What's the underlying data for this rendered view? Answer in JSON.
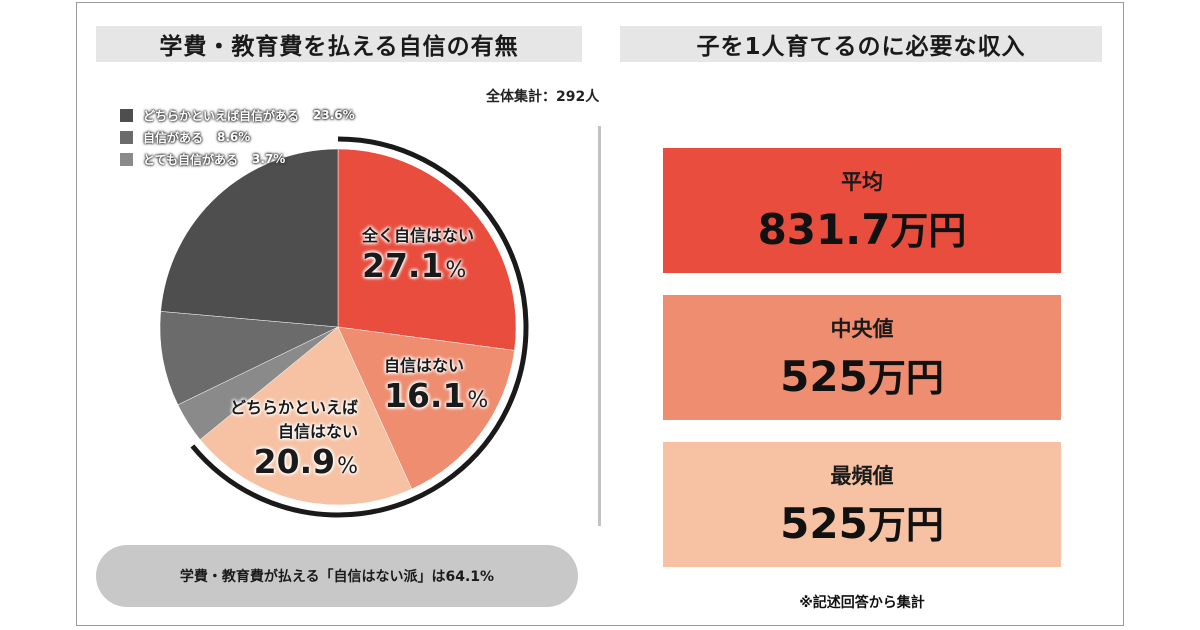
{
  "left": {
    "title": "学費・教育費を払える自信の有無",
    "total": "全体集計：292人",
    "summary": "学費・教育費が払える「自信はない派」は64.1%"
  },
  "right": {
    "title": "子を1人育てるのに必要な収入",
    "note": "※記述回答から集計",
    "boxes": [
      {
        "label": "平均",
        "value": "831.7",
        "unit": "万円",
        "color": "#e84d3d"
      },
      {
        "label": "中央値",
        "value": "525",
        "unit": "万円",
        "color": "#ee8d6f"
      },
      {
        "label": "最頻値",
        "value": "525",
        "unit": "万円",
        "color": "#f6c2a3"
      }
    ]
  },
  "chart_data": {
    "type": "pie",
    "categories": [
      "全く自信はない",
      "自信はない",
      "どちらかといえば自信はない",
      "とても自信がある",
      "自信がある",
      "どちらかといえば自信がある"
    ],
    "values": [
      27.1,
      16.1,
      20.9,
      3.7,
      8.6,
      23.6
    ],
    "colors": [
      "#e84d3d",
      "#ee8d6f",
      "#f6c2a3",
      "#8a8a8a",
      "#6b6b6b",
      "#4e4e4e"
    ],
    "labels_on_chart": {
      "neg1": {
        "cat": "全く自信はない",
        "pct": "27.1"
      },
      "neg2": {
        "cat": "自信はない",
        "pct": "16.1"
      },
      "neg3": {
        "cat1": "どちらかといえば",
        "cat2": "自信はない",
        "pct": "20.9"
      },
      "pct_unit": "%"
    },
    "legend": [
      {
        "label": "どちらかといえば自信がある",
        "value": "23.6%",
        "color": "#4e4e4e"
      },
      {
        "label": "自信がある",
        "value": "8.6%",
        "color": "#6b6b6b"
      },
      {
        "label": "とても自信がある",
        "value": "3.7%",
        "color": "#8a8a8a"
      }
    ]
  }
}
